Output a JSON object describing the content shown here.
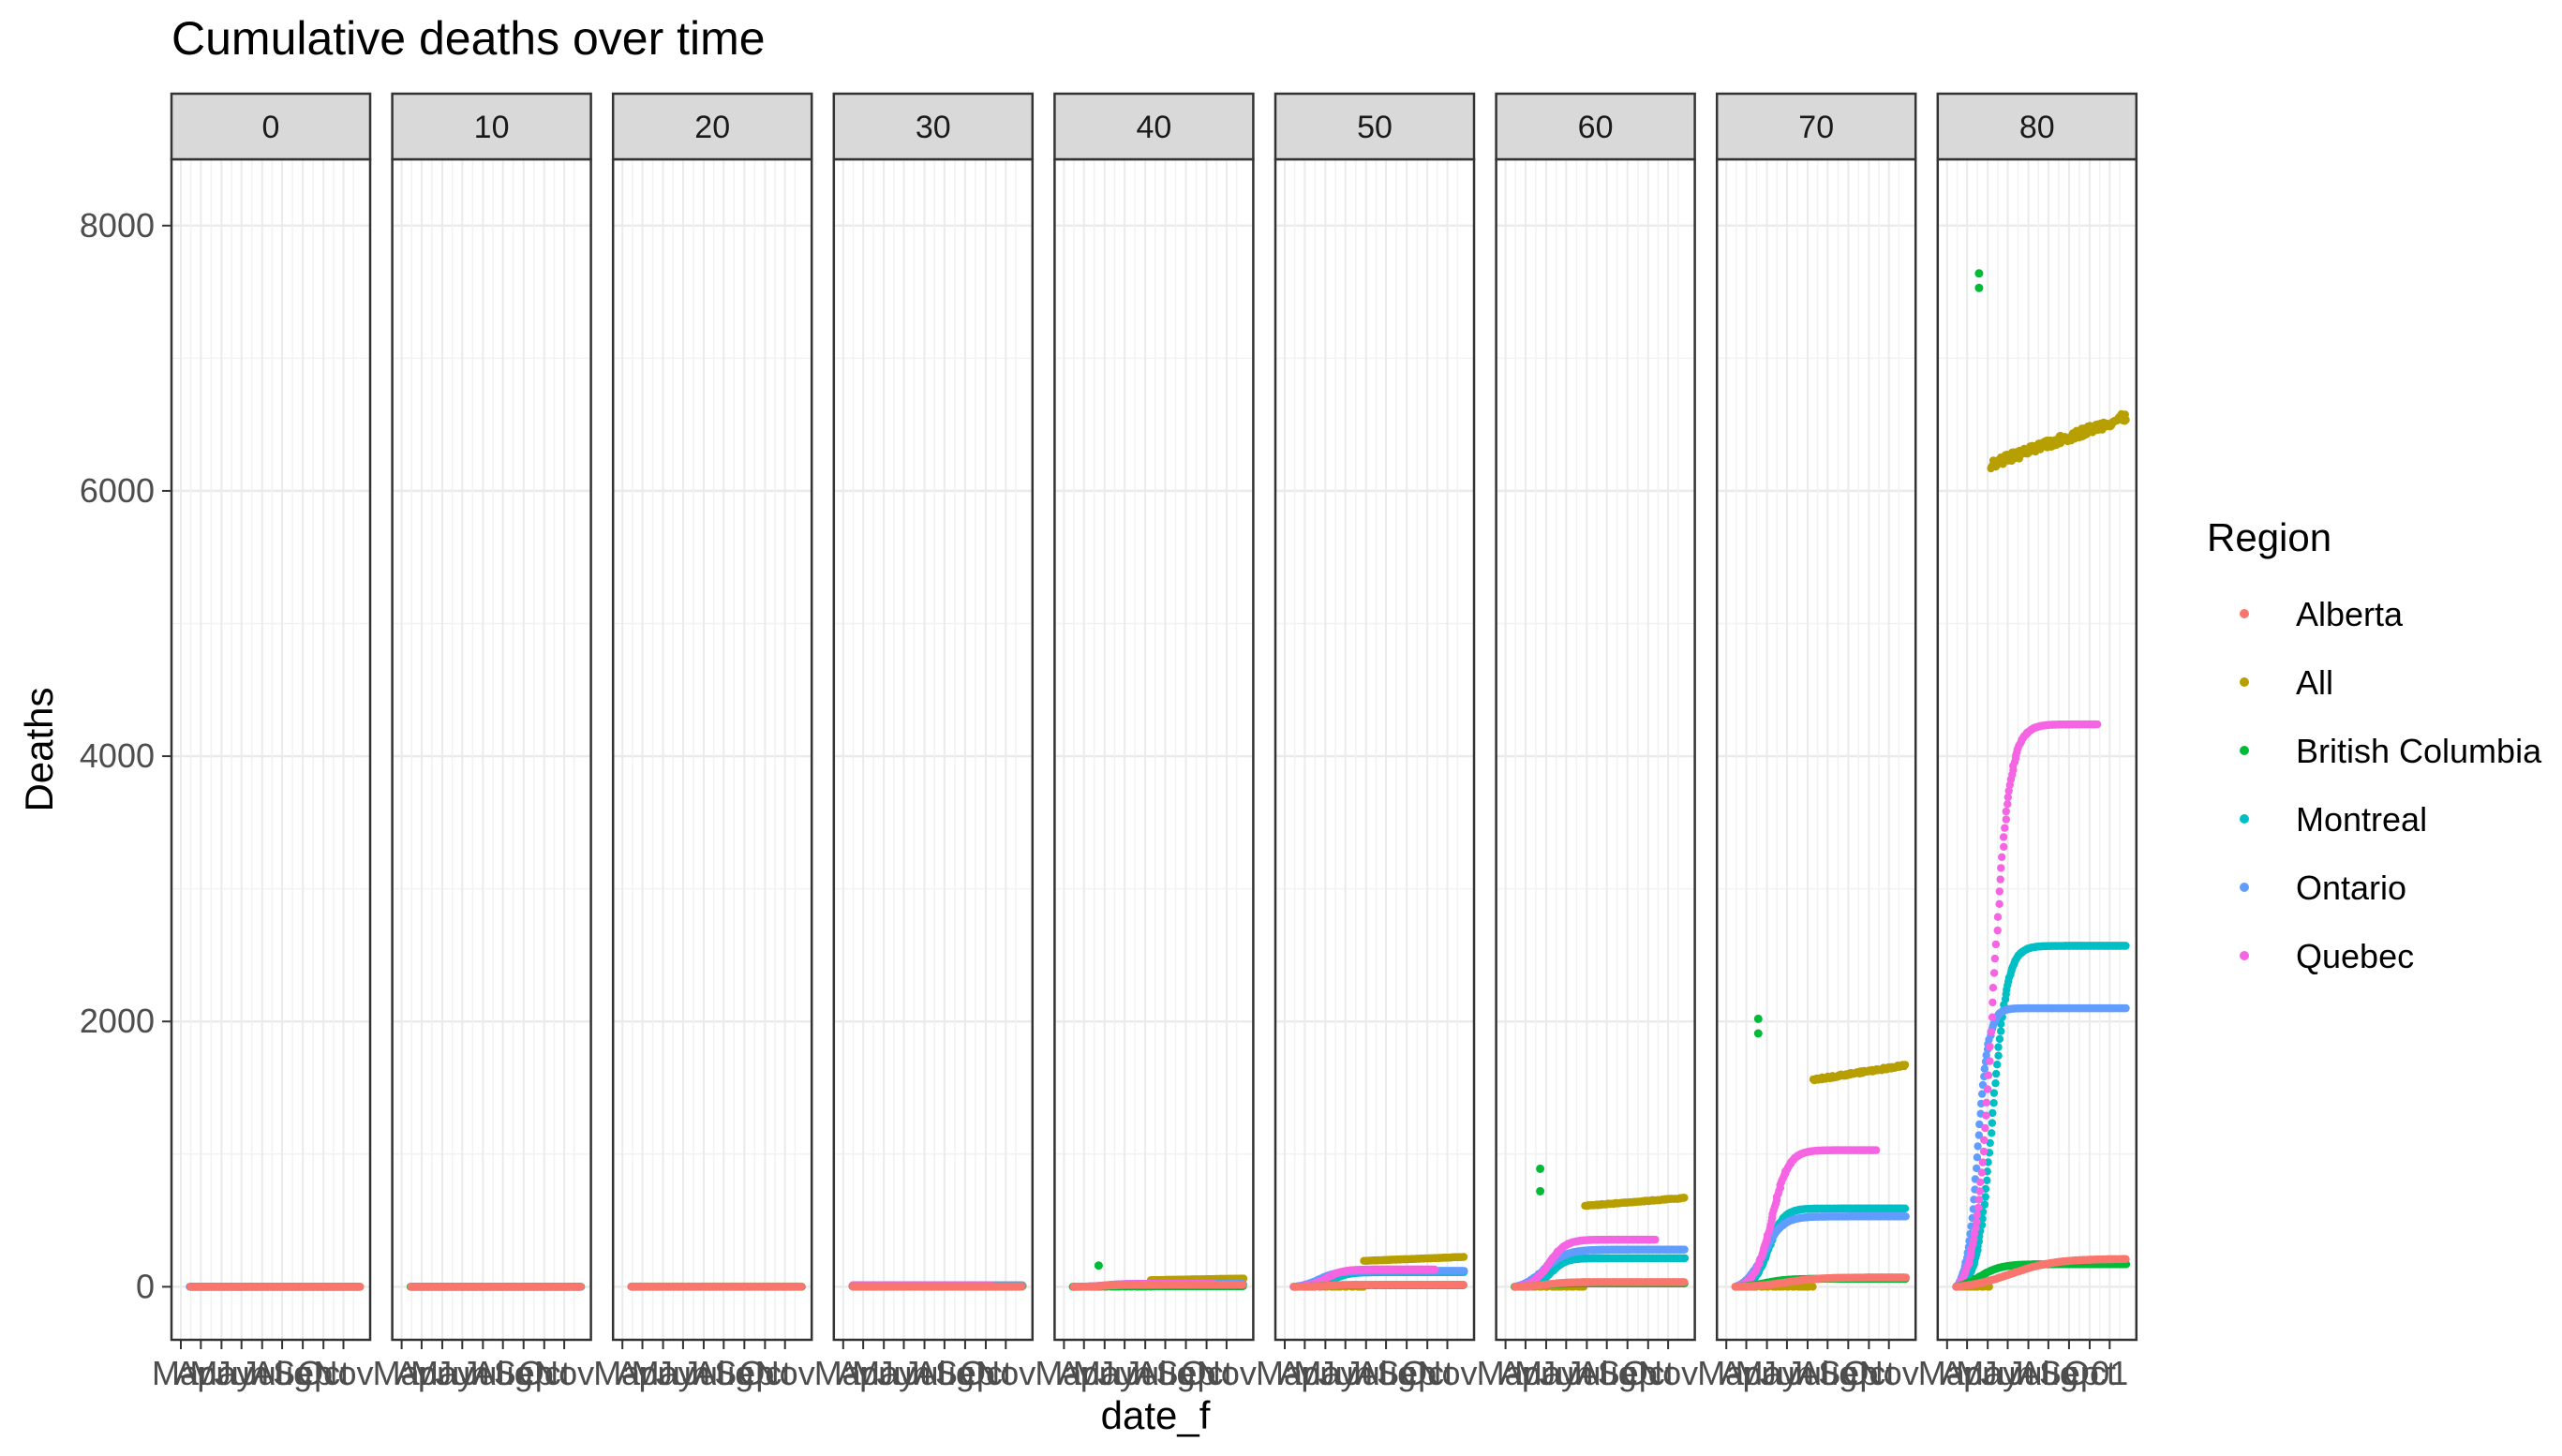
{
  "chart_data": {
    "type": "scatter",
    "title": "Cumulative deaths over time",
    "xlabel": "date_f",
    "ylabel": "Deaths",
    "ylim": [
      -400,
      8500
    ],
    "yticks": [
      0,
      2000,
      4000,
      6000,
      8000
    ],
    "ytick_labels": [
      "0",
      "2000",
      "4000",
      "6000",
      "8000"
    ],
    "x_range_days": [
      0,
      270
    ],
    "x_ticks_days": [
      0,
      30,
      61,
      91,
      122,
      152,
      183,
      214,
      244
    ],
    "x_tick_labels": [
      "Mar",
      "Apr",
      "May",
      "Jun",
      "Jul",
      "Aug",
      "Sep",
      "Oct",
      "Nov"
    ],
    "x_tick_labels_last_panel": [
      "",
      "",
      "",
      "",
      "",
      "",
      "",
      "Oct",
      "01"
    ],
    "facet_labels": [
      "0",
      "10",
      "20",
      "30",
      "40",
      "50",
      "60",
      "70",
      "80"
    ],
    "grid": true,
    "legend": {
      "title": "Region",
      "position": "right",
      "entries": [
        "Alberta",
        "All",
        "British Columbia",
        "Montreal",
        "Ontario",
        "Quebec"
      ]
    },
    "colors": {
      "Alberta": "#F8766D",
      "All": "#B79F00",
      "British Columbia": "#00BA38",
      "Montreal": "#00BFC4",
      "Ontario": "#619CFF",
      "Quebec": "#F564E3"
    },
    "series_order": [
      "All",
      "Montreal",
      "Ontario",
      "Quebec",
      "British Columbia",
      "Alberta"
    ],
    "panels": [
      {
        "facet": "0",
        "series": {
          "Alberta": {
            "type": "flat",
            "start": 14,
            "end": 270,
            "final": 0
          },
          "All": {
            "type": "flat",
            "start": 14,
            "end": 270,
            "final": 0
          },
          "British Columbia": {
            "type": "flat",
            "start": 14,
            "end": 270,
            "final": 0
          },
          "Montreal": {
            "type": "flat",
            "start": 14,
            "end": 270,
            "final": 0
          },
          "Ontario": {
            "type": "flat",
            "start": 14,
            "end": 270,
            "final": 0
          },
          "Quebec": {
            "type": "flat",
            "start": 14,
            "end": 225,
            "final": 0
          }
        }
      },
      {
        "facet": "10",
        "series": {
          "Alberta": {
            "type": "flat",
            "start": 14,
            "end": 270,
            "final": 0
          },
          "All": {
            "type": "flat",
            "start": 14,
            "end": 270,
            "final": 0
          },
          "British Columbia": {
            "type": "flat",
            "start": 14,
            "end": 270,
            "final": 0
          },
          "Montreal": {
            "type": "flat",
            "start": 14,
            "end": 270,
            "final": 0
          },
          "Ontario": {
            "type": "flat",
            "start": 14,
            "end": 270,
            "final": 0
          },
          "Quebec": {
            "type": "flat",
            "start": 14,
            "end": 225,
            "final": 0
          }
        }
      },
      {
        "facet": "20",
        "series": {
          "Alberta": {
            "type": "flat",
            "start": 14,
            "end": 270,
            "final": 1
          },
          "All": {
            "type": "flat",
            "start": 14,
            "end": 270,
            "final": 2
          },
          "British Columbia": {
            "type": "flat",
            "start": 14,
            "end": 270,
            "final": 0
          },
          "Montreal": {
            "type": "flat",
            "start": 14,
            "end": 270,
            "final": 1
          },
          "Ontario": {
            "type": "flat",
            "start": 14,
            "end": 270,
            "final": 1
          },
          "Quebec": {
            "type": "flat",
            "start": 14,
            "end": 225,
            "final": 1
          }
        }
      },
      {
        "facet": "30",
        "series": {
          "Alberta": {
            "type": "flat",
            "start": 14,
            "end": 270,
            "final": 2
          },
          "All": {
            "type": "flat",
            "start": 14,
            "end": 270,
            "final": 12
          },
          "British Columbia": {
            "type": "flat",
            "start": 14,
            "end": 270,
            "final": 1
          },
          "Montreal": {
            "type": "flat",
            "start": 14,
            "end": 270,
            "final": 5
          },
          "Ontario": {
            "type": "flat",
            "start": 14,
            "end": 270,
            "final": 7
          },
          "Quebec": {
            "type": "flat",
            "start": 14,
            "end": 225,
            "final": 6
          }
        }
      },
      {
        "facet": "40",
        "series": {
          "Alberta": {
            "type": "growth",
            "start": 14,
            "end": 270,
            "mid": 62,
            "k": 0.08,
            "final": 15
          },
          "All": {
            "type": "report",
            "start": 14,
            "end": 270,
            "jump_day": 130,
            "jump_value": 50,
            "final": 62
          },
          "British Columbia": {
            "type": "growth",
            "start": 14,
            "end": 270,
            "mid": 58,
            "k": 0.1,
            "final": 4,
            "outliers": [
              [
                52,
                160
              ]
            ]
          },
          "Montreal": {
            "type": "growth",
            "start": 14,
            "end": 270,
            "mid": 70,
            "k": 0.08,
            "final": 18
          },
          "Ontario": {
            "type": "growth",
            "start": 14,
            "end": 270,
            "mid": 62,
            "k": 0.08,
            "final": 22
          },
          "Quebec": {
            "type": "growth",
            "start": 14,
            "end": 225,
            "mid": 65,
            "k": 0.08,
            "final": 22
          }
        }
      },
      {
        "facet": "50",
        "series": {
          "Alberta": {
            "type": "growth",
            "start": 14,
            "end": 270,
            "mid": 62,
            "k": 0.08,
            "final": 15
          },
          "All": {
            "type": "report",
            "start": 14,
            "end": 270,
            "jump_day": 118,
            "jump_value": 195,
            "final": 225
          },
          "British Columbia": {
            "type": "growth",
            "start": 14,
            "end": 270,
            "mid": 55,
            "k": 0.1,
            "final": 12
          },
          "Montreal": {
            "type": "growth",
            "start": 14,
            "end": 270,
            "mid": 72,
            "k": 0.08,
            "final": 110
          },
          "Ontario": {
            "type": "growth",
            "start": 14,
            "end": 270,
            "mid": 52,
            "k": 0.07,
            "final": 120
          },
          "Quebec": {
            "type": "growth",
            "start": 14,
            "end": 225,
            "mid": 62,
            "k": 0.08,
            "final": 130
          }
        }
      },
      {
        "facet": "60",
        "series": {
          "Alberta": {
            "type": "growth",
            "start": 14,
            "end": 270,
            "mid": 62,
            "k": 0.07,
            "final": 35
          },
          "All": {
            "type": "report",
            "start": 14,
            "end": 270,
            "jump_day": 118,
            "jump_value": 610,
            "final": 670
          },
          "British Columbia": {
            "type": "growth",
            "start": 14,
            "end": 270,
            "mid": 55,
            "k": 0.08,
            "final": 25,
            "outliers": [
              [
                52,
                890
              ],
              [
                52,
                720
              ]
            ]
          },
          "Montreal": {
            "type": "growth",
            "start": 14,
            "end": 270,
            "mid": 68,
            "k": 0.09,
            "final": 215
          },
          "Ontario": {
            "type": "growth",
            "start": 14,
            "end": 270,
            "mid": 58,
            "k": 0.06,
            "final": 280
          },
          "Quebec": {
            "type": "growth",
            "start": 14,
            "end": 225,
            "mid": 65,
            "k": 0.08,
            "final": 355
          }
        }
      },
      {
        "facet": "70",
        "series": {
          "Alberta": {
            "type": "growth",
            "start": 14,
            "end": 270,
            "mid": 90,
            "k": 0.04,
            "final": 70
          },
          "All": {
            "type": "report",
            "start": 14,
            "end": 270,
            "jump_day": 130,
            "jump_value": 1560,
            "final": 1670
          },
          "British Columbia": {
            "type": "growth",
            "start": 14,
            "end": 270,
            "mid": 58,
            "k": 0.06,
            "final": 60,
            "outliers": [
              [
                48,
                2020
              ],
              [
                48,
                1910
              ]
            ]
          },
          "Montreal": {
            "type": "growth",
            "start": 14,
            "end": 270,
            "mid": 64,
            "k": 0.09,
            "final": 590
          },
          "Ontario": {
            "type": "growth",
            "start": 14,
            "end": 270,
            "mid": 56,
            "k": 0.07,
            "final": 530
          },
          "Quebec": {
            "type": "growth",
            "start": 14,
            "end": 225,
            "mid": 68,
            "k": 0.08,
            "final": 1030
          }
        }
      },
      {
        "facet": "80",
        "series": {
          "Alberta": {
            "type": "growth",
            "start": 14,
            "end": 270,
            "mid": 95,
            "k": 0.03,
            "final": 210
          },
          "All": {
            "type": "report",
            "start": 14,
            "end": 270,
            "jump_day": 65,
            "jump_value": 6200,
            "final": 6560
          },
          "British Columbia": {
            "type": "growth",
            "start": 14,
            "end": 270,
            "mid": 48,
            "k": 0.06,
            "final": 170,
            "outliers": [
              [
                48,
                7640
              ],
              [
                48,
                7530
              ]
            ]
          },
          "Montreal": {
            "type": "growth",
            "start": 14,
            "end": 270,
            "mid": 68,
            "k": 0.09,
            "final": 2570
          },
          "Ontario": {
            "type": "growth",
            "start": 14,
            "end": 270,
            "mid": 46,
            "k": 0.12,
            "final": 2100
          },
          "Quebec": {
            "type": "growth",
            "start": 14,
            "end": 225,
            "mid": 68,
            "k": 0.08,
            "final": 4240
          }
        }
      }
    ]
  }
}
